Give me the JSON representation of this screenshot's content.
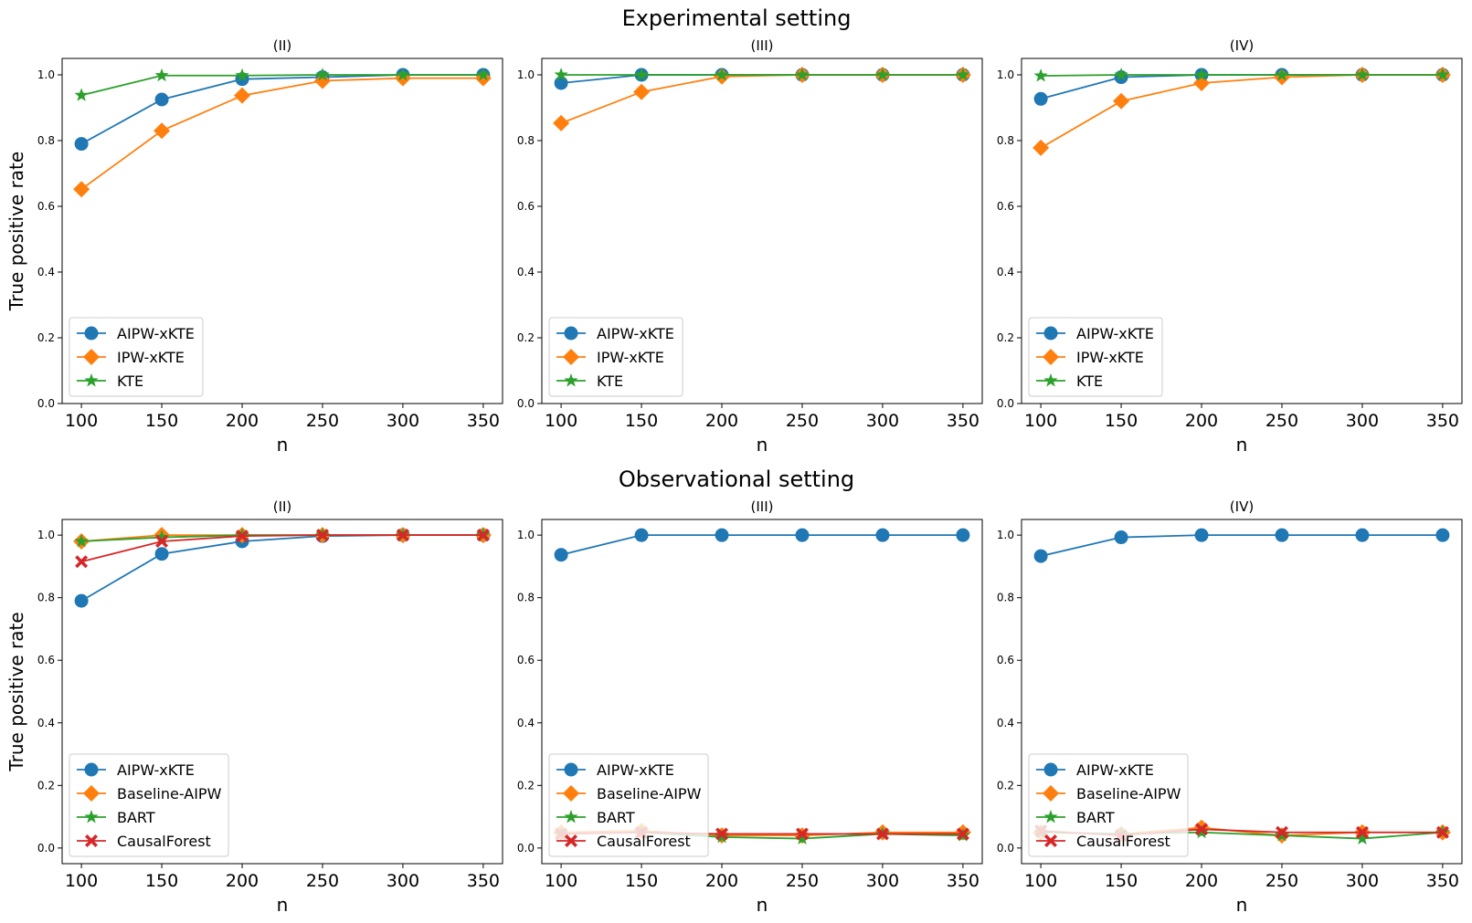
{
  "figure": {
    "rows": [
      {
        "title": "Experimental setting"
      },
      {
        "title": "Observational setting"
      }
    ]
  },
  "colors": {
    "AIPW-xKTE": "#1f77b4",
    "IPW-xKTE": "#ff7f0e",
    "Baseline-AIPW": "#ff7f0e",
    "KTE": "#2ca02c",
    "BART": "#2ca02c",
    "CausalForest": "#d62728"
  },
  "markers": {
    "AIPW-xKTE": "circle",
    "IPW-xKTE": "diamond",
    "Baseline-AIPW": "diamond",
    "KTE": "star",
    "BART": "star",
    "CausalForest": "x"
  },
  "chart_data": [
    {
      "type": "line",
      "row": 0,
      "col": 0,
      "title": "(II)",
      "xlabel": "n",
      "ylabel": "True positive rate",
      "x": [
        100,
        150,
        200,
        250,
        300,
        350
      ],
      "ylim": [
        0,
        1.05
      ],
      "yticks": [
        0.0,
        0.2,
        0.4,
        0.6,
        0.8,
        1.0
      ],
      "grid": false,
      "legend": "lower-left",
      "series": [
        {
          "name": "AIPW-xKTE",
          "values": [
            0.79,
            0.925,
            0.987,
            0.993,
            1.0,
            1.0
          ]
        },
        {
          "name": "IPW-xKTE",
          "values": [
            0.652,
            0.83,
            0.937,
            0.982,
            0.99,
            0.99
          ]
        },
        {
          "name": "KTE",
          "values": [
            0.938,
            0.998,
            0.998,
            1.0,
            1.0,
            1.0
          ]
        }
      ]
    },
    {
      "type": "line",
      "row": 0,
      "col": 1,
      "title": "(III)",
      "xlabel": "n",
      "ylabel": "",
      "x": [
        100,
        150,
        200,
        250,
        300,
        350
      ],
      "ylim": [
        0,
        1.05
      ],
      "yticks": [
        0.0,
        0.2,
        0.4,
        0.6,
        0.8,
        1.0
      ],
      "grid": false,
      "legend": "lower-left",
      "series": [
        {
          "name": "AIPW-xKTE",
          "values": [
            0.975,
            1.0,
            1.0,
            1.0,
            1.0,
            1.0
          ]
        },
        {
          "name": "IPW-xKTE",
          "values": [
            0.853,
            0.948,
            0.995,
            1.0,
            1.0,
            1.0
          ]
        },
        {
          "name": "KTE",
          "values": [
            1.0,
            1.0,
            1.0,
            1.0,
            1.0,
            1.0
          ]
        }
      ]
    },
    {
      "type": "line",
      "row": 0,
      "col": 2,
      "title": "(IV)",
      "xlabel": "n",
      "ylabel": "",
      "x": [
        100,
        150,
        200,
        250,
        300,
        350
      ],
      "ylim": [
        0,
        1.05
      ],
      "yticks": [
        0.0,
        0.2,
        0.4,
        0.6,
        0.8,
        1.0
      ],
      "grid": false,
      "legend": "lower-left",
      "series": [
        {
          "name": "AIPW-xKTE",
          "values": [
            0.927,
            0.993,
            1.0,
            1.0,
            1.0,
            1.0
          ]
        },
        {
          "name": "IPW-xKTE",
          "values": [
            0.778,
            0.92,
            0.975,
            0.993,
            1.0,
            1.0
          ]
        },
        {
          "name": "KTE",
          "values": [
            0.997,
            1.0,
            1.0,
            1.0,
            1.0,
            1.0
          ]
        }
      ]
    },
    {
      "type": "line",
      "row": 1,
      "col": 0,
      "title": "(II)",
      "xlabel": "n",
      "ylabel": "True positive rate",
      "x": [
        100,
        150,
        200,
        250,
        300,
        350
      ],
      "ylim": [
        -0.05,
        1.05
      ],
      "yticks": [
        0.0,
        0.2,
        0.4,
        0.6,
        0.8,
        1.0
      ],
      "grid": false,
      "legend": "lower-left",
      "series": [
        {
          "name": "AIPW-xKTE",
          "values": [
            0.79,
            0.94,
            0.98,
            0.997,
            1.0,
            1.0
          ]
        },
        {
          "name": "Baseline-AIPW",
          "values": [
            0.98,
            1.0,
            1.0,
            1.0,
            1.0,
            1.0
          ]
        },
        {
          "name": "BART",
          "values": [
            0.98,
            0.993,
            1.0,
            1.0,
            1.0,
            1.0
          ]
        },
        {
          "name": "CausalForest",
          "values": [
            0.915,
            0.98,
            0.997,
            1.0,
            1.0,
            1.0
          ]
        }
      ]
    },
    {
      "type": "line",
      "row": 1,
      "col": 1,
      "title": "(III)",
      "xlabel": "n",
      "ylabel": "",
      "x": [
        100,
        150,
        200,
        250,
        300,
        350
      ],
      "ylim": [
        -0.05,
        1.05
      ],
      "yticks": [
        0.0,
        0.2,
        0.4,
        0.6,
        0.8,
        1.0
      ],
      "grid": false,
      "legend": "lower-left",
      "series": [
        {
          "name": "AIPW-xKTE",
          "values": [
            0.937,
            1.0,
            1.0,
            1.0,
            1.0,
            1.0
          ]
        },
        {
          "name": "Baseline-AIPW",
          "values": [
            0.05,
            0.055,
            0.04,
            0.04,
            0.05,
            0.05
          ]
        },
        {
          "name": "BART",
          "values": [
            0.045,
            0.05,
            0.035,
            0.03,
            0.045,
            0.04
          ]
        },
        {
          "name": "CausalForest",
          "values": [
            0.045,
            0.05,
            0.045,
            0.045,
            0.045,
            0.045
          ]
        }
      ]
    },
    {
      "type": "line",
      "row": 1,
      "col": 2,
      "title": "(IV)",
      "xlabel": "n",
      "ylabel": "",
      "x": [
        100,
        150,
        200,
        250,
        300,
        350
      ],
      "ylim": [
        -0.05,
        1.05
      ],
      "yticks": [
        0.0,
        0.2,
        0.4,
        0.6,
        0.8,
        1.0
      ],
      "grid": false,
      "legend": "lower-left",
      "series": [
        {
          "name": "AIPW-xKTE",
          "values": [
            0.933,
            0.993,
            1.0,
            1.0,
            1.0,
            1.0
          ]
        },
        {
          "name": "Baseline-AIPW",
          "values": [
            0.05,
            0.045,
            0.065,
            0.04,
            0.05,
            0.05
          ]
        },
        {
          "name": "BART",
          "values": [
            0.05,
            0.045,
            0.05,
            0.04,
            0.03,
            0.05
          ]
        },
        {
          "name": "CausalForest",
          "values": [
            0.055,
            0.04,
            0.06,
            0.05,
            0.05,
            0.05
          ]
        }
      ]
    }
  ]
}
